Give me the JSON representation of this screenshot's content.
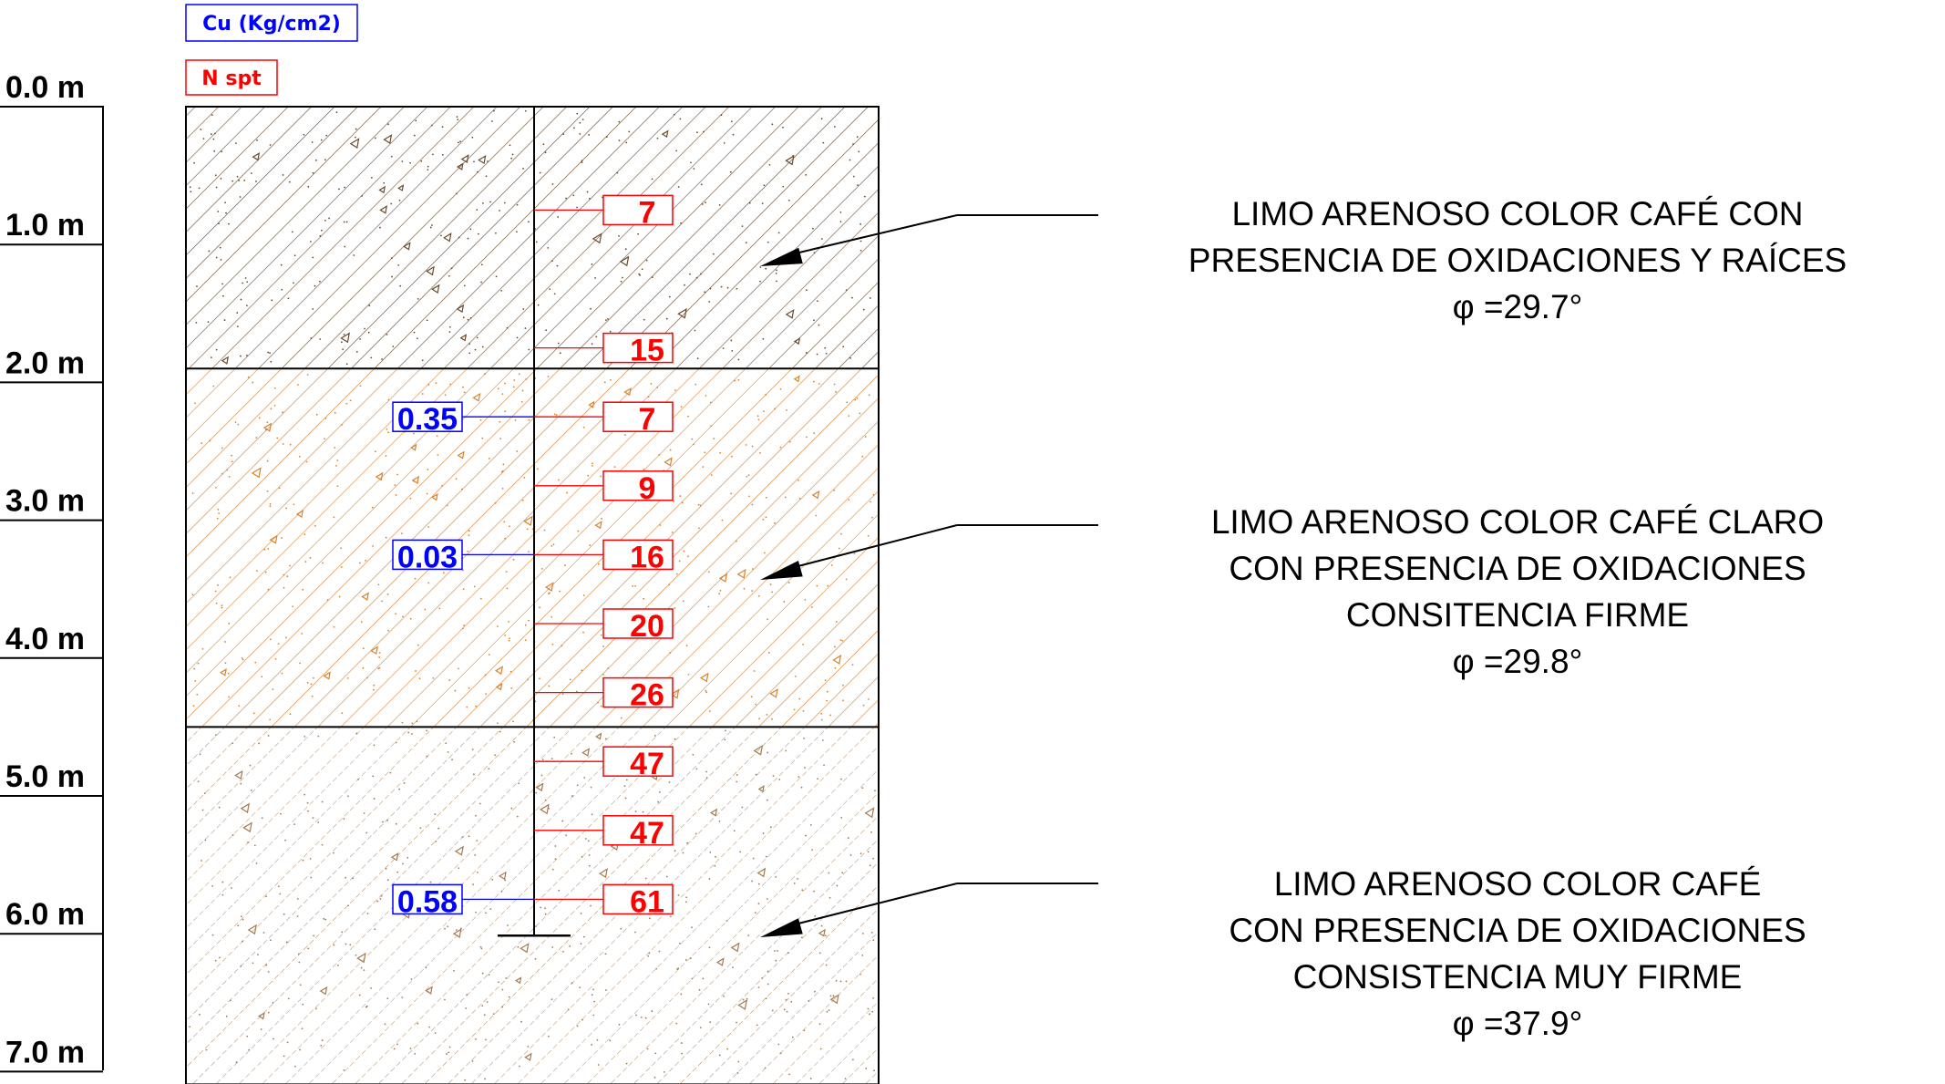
{
  "legend": {
    "cu_label": "Cu (Kg/cm2)",
    "nspt_label": "N spt"
  },
  "depth_scale": [
    {
      "depth": 0,
      "label": "0.0 m"
    },
    {
      "depth": 1,
      "label": "1.0 m"
    },
    {
      "depth": 2,
      "label": "2.0 m"
    },
    {
      "depth": 3,
      "label": "3.0 m"
    },
    {
      "depth": 4,
      "label": "4.0 m"
    },
    {
      "depth": 5,
      "label": "5.0 m"
    },
    {
      "depth": 6,
      "label": "6.0 m"
    },
    {
      "depth": 7,
      "label": "7.0 m"
    }
  ],
  "max_depth": 7.0,
  "borehole_bottom_depth": 6.0,
  "layers": [
    {
      "top": 0.0,
      "bottom": 1.9,
      "color": "#6b4a2b",
      "description": [
        "LIMO ARENOSO COLOR CAFÉ  CON",
        "PRESENCIA DE OXIDACIONES  Y RAÍCES",
        "φ =29.7°"
      ]
    },
    {
      "top": 1.9,
      "bottom": 4.5,
      "color": "#d9822b",
      "description": [
        "LIMO ARENOSO COLOR CAFÉ CLARO",
        "CON PRESENCIA DE OXIDACIONES",
        "CONSITENCIA FIRME",
        "φ =29.8°"
      ]
    },
    {
      "top": 4.5,
      "bottom": 7.1,
      "color": "#a57a4e",
      "description": [
        "LIMO ARENOSO COLOR CAFÉ",
        "CON PRESENCIA DE OXIDACIONES",
        "CONSISTENCIA MUY FIRME",
        "φ =37.9°"
      ]
    }
  ],
  "spt_values": [
    {
      "depth": 0.75,
      "value": "7"
    },
    {
      "depth": 1.75,
      "value": "15"
    },
    {
      "depth": 2.25,
      "value": "7"
    },
    {
      "depth": 2.75,
      "value": "9"
    },
    {
      "depth": 3.25,
      "value": "16"
    },
    {
      "depth": 3.75,
      "value": "20"
    },
    {
      "depth": 4.25,
      "value": "26"
    },
    {
      "depth": 4.75,
      "value": "47"
    },
    {
      "depth": 5.25,
      "value": "47"
    },
    {
      "depth": 5.75,
      "value": "61"
    }
  ],
  "cu_values": [
    {
      "depth": 2.25,
      "value": "0.35"
    },
    {
      "depth": 3.25,
      "value": "0.03"
    },
    {
      "depth": 5.75,
      "value": "0.58"
    }
  ],
  "colors": {
    "spt": "#ff0000",
    "cu": "#0000ff",
    "lines": "#000000"
  }
}
